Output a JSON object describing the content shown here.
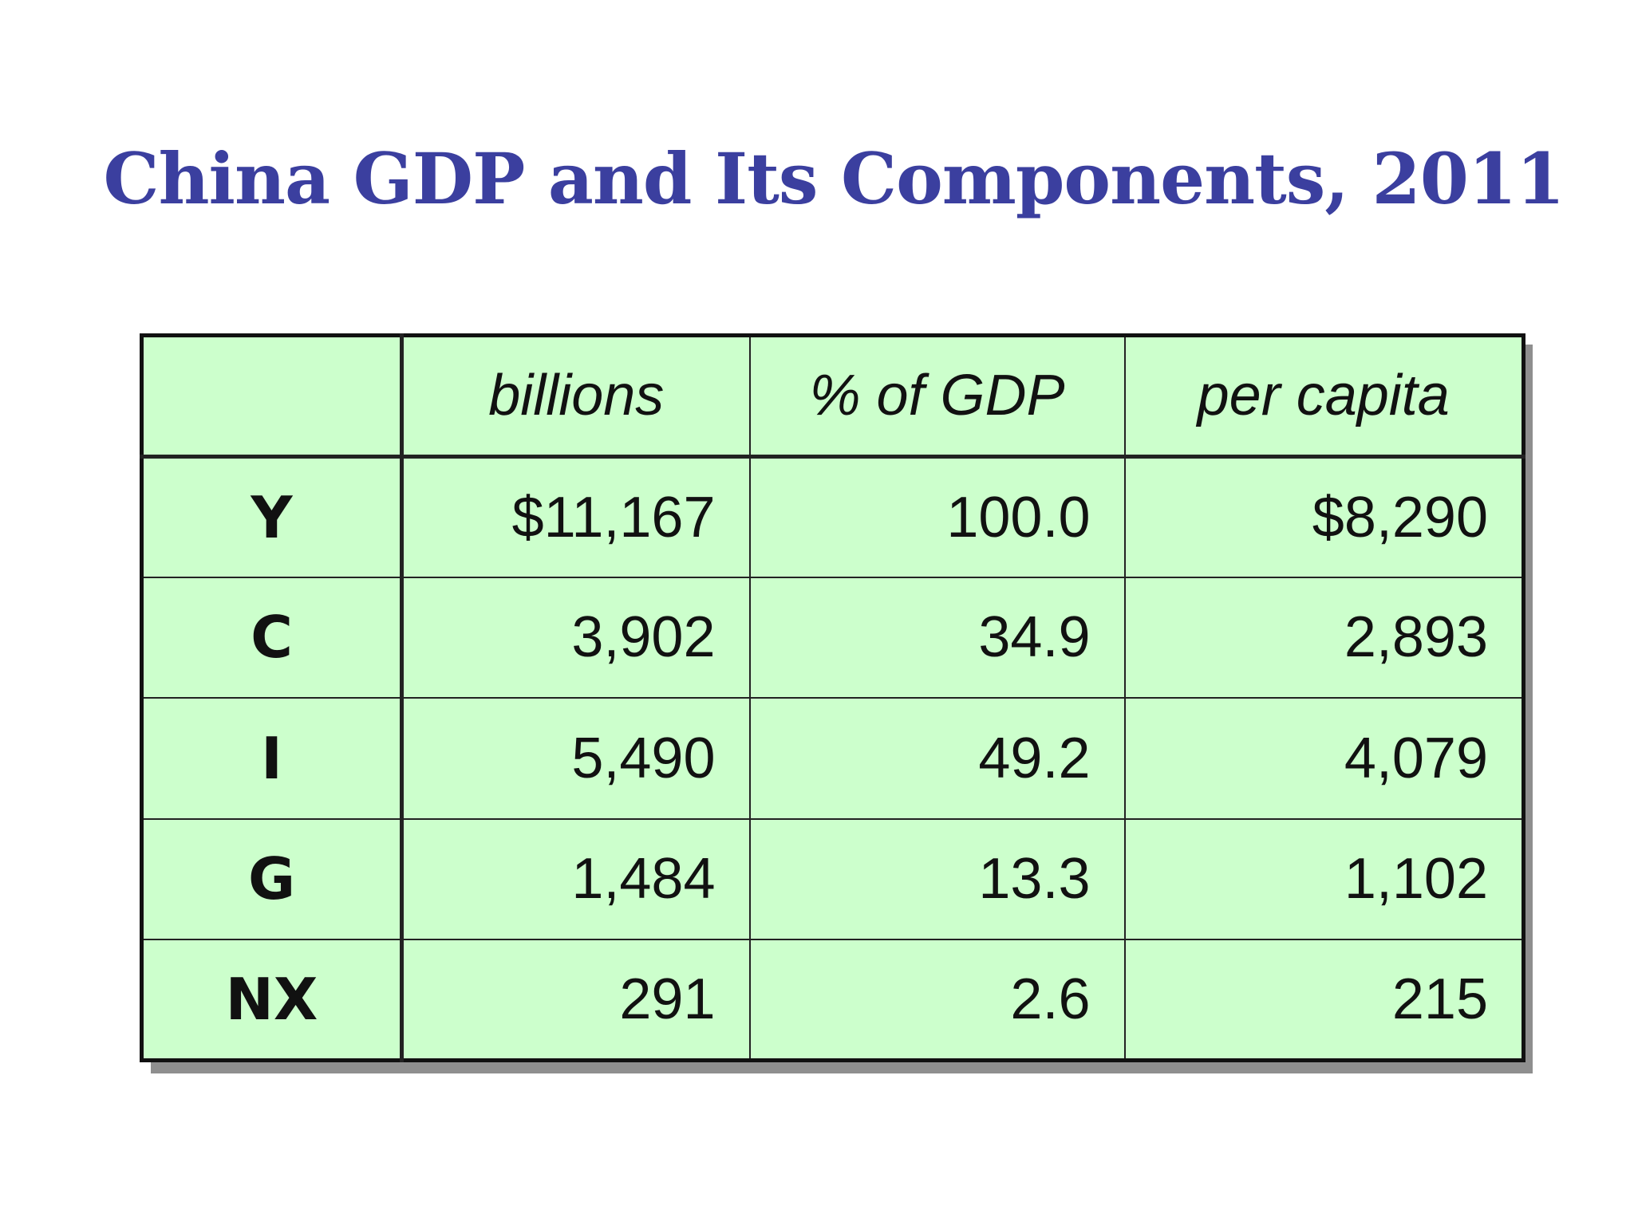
{
  "title": "China GDP and Its Components, 2011",
  "colors": {
    "title": "#3b3f9f",
    "table_bg": "#ccffcc",
    "border": "#111111",
    "shadow": "#8f8f8f"
  },
  "table": {
    "headers": [
      "",
      "billions",
      "% of GDP",
      "per capita"
    ],
    "rows": [
      {
        "label": "Y",
        "billions": "$11,167",
        "pct_gdp": "100.0",
        "per_capita": "$8,290"
      },
      {
        "label": "C",
        "billions": "3,902",
        "pct_gdp": "34.9",
        "per_capita": "2,893"
      },
      {
        "label": "I",
        "billions": "5,490",
        "pct_gdp": "49.2",
        "per_capita": "4,079"
      },
      {
        "label": "G",
        "billions": "1,484",
        "pct_gdp": "13.3",
        "per_capita": "1,102"
      },
      {
        "label": "NX",
        "billions": "291",
        "pct_gdp": "2.6",
        "per_capita": "215"
      }
    ]
  }
}
